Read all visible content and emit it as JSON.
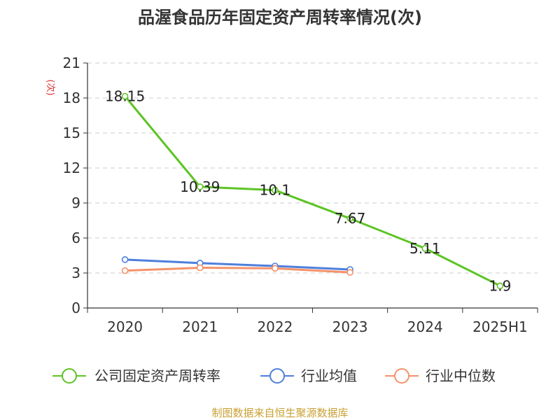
{
  "chart_data": {
    "type": "line",
    "title": "品渥食品历年固定资产周转率情况(次)",
    "ylabel": "(次)",
    "xlabel": "",
    "categories": [
      "2020",
      "2021",
      "2022",
      "2023",
      "2024",
      "2025H1"
    ],
    "ylim": [
      0,
      21
    ],
    "yticks": [
      0,
      3,
      6,
      9,
      12,
      15,
      18,
      21
    ],
    "grid": true,
    "legend_position": "bottom",
    "series": [
      {
        "name": "公司固定资产周转率",
        "color": "#5dc424",
        "values": [
          18.15,
          10.39,
          10.1,
          7.67,
          5.11,
          1.9
        ],
        "labels": [
          "18.15",
          "10.39",
          "10.1",
          "7.67",
          "5.11",
          "1.9"
        ]
      },
      {
        "name": "行业均值",
        "color": "#4e7fdc",
        "values": [
          4.15,
          3.85,
          3.6,
          3.3,
          null,
          null
        ]
      },
      {
        "name": "行业中位数",
        "color": "#f4926a",
        "values": [
          3.2,
          3.45,
          3.4,
          3.05,
          null,
          null
        ]
      }
    ],
    "source": "制图数据来自恒生聚源数据库"
  }
}
